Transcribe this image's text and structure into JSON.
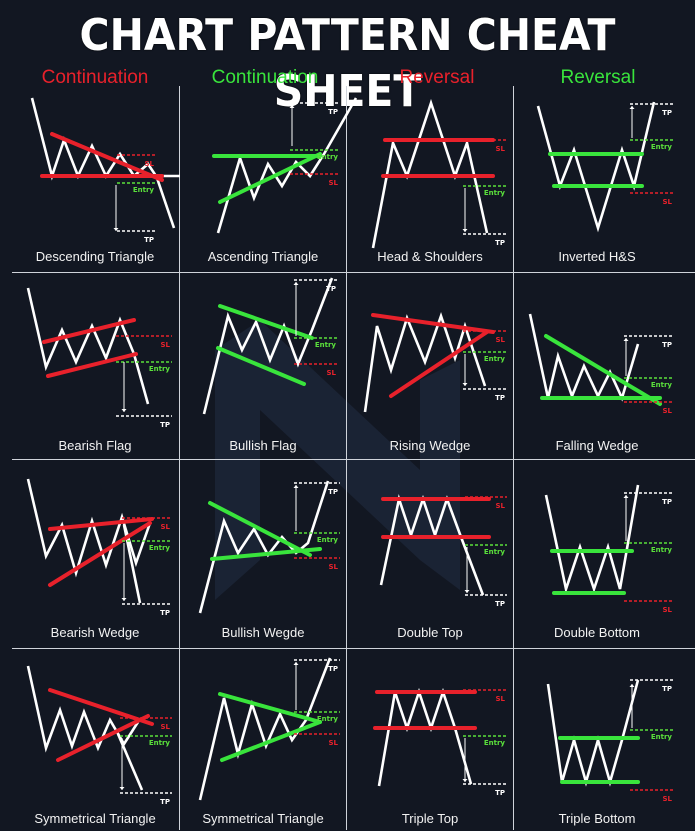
{
  "title": "CHART PATTERN CHEAT SHEET",
  "colors": {
    "continuation_red": "#e8212b",
    "continuation_green": "#39e43c",
    "reversal_red": "#e8212b",
    "reversal_green": "#39e43c",
    "line": "#ffffff",
    "sl": "#e8212b",
    "entry": "#5ae03b"
  },
  "column_headers": [
    {
      "label": "Continuation",
      "color": "#e8212b"
    },
    {
      "label": "Continuation",
      "color": "#39e43c"
    },
    {
      "label": "Reversal",
      "color": "#e8212b"
    },
    {
      "label": "Reversal",
      "color": "#39e43c"
    }
  ],
  "marker_labels": {
    "sl": "SL",
    "entry": "Entry",
    "tp": "TP"
  },
  "patterns": [
    {
      "name": "Descending Triangle",
      "accent": "red"
    },
    {
      "name": "Ascending Triangle",
      "accent": "green"
    },
    {
      "name": "Head & Shoulders",
      "accent": "red"
    },
    {
      "name": "Inverted H&S",
      "accent": "green"
    },
    {
      "name": "Bearish Flag",
      "accent": "red"
    },
    {
      "name": "Bullish Flag",
      "accent": "green"
    },
    {
      "name": "Rising Wedge",
      "accent": "red"
    },
    {
      "name": "Falling Wedge",
      "accent": "green"
    },
    {
      "name": "Bearish Wedge",
      "accent": "red"
    },
    {
      "name": "Bullish Wegde",
      "accent": "green"
    },
    {
      "name": "Double Top",
      "accent": "red"
    },
    {
      "name": "Double Bottom",
      "accent": "green"
    },
    {
      "name": "Symmetrical Triangle",
      "accent": "red"
    },
    {
      "name": "Symmetrical Triangle",
      "accent": "green"
    },
    {
      "name": "Triple Top",
      "accent": "red"
    },
    {
      "name": "Triple Bottom",
      "accent": "green"
    }
  ]
}
